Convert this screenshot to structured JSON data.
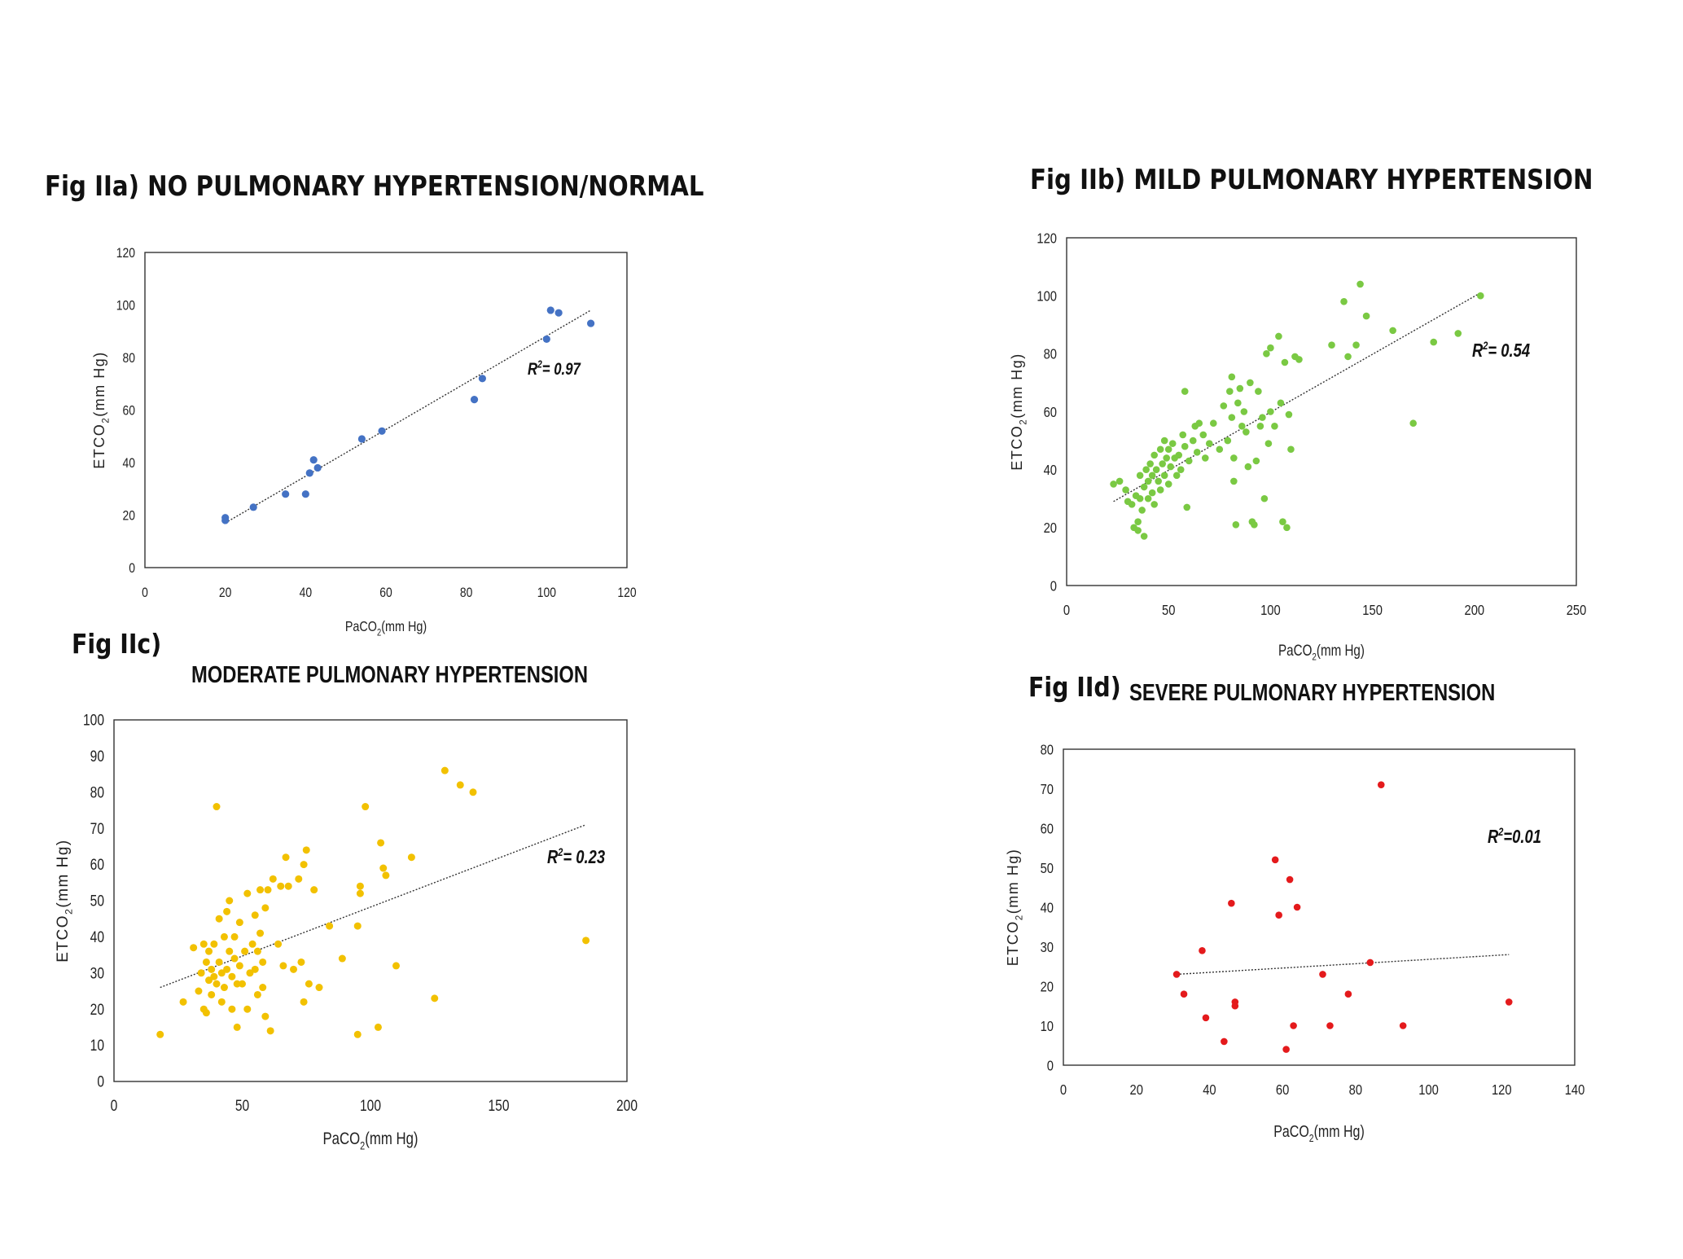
{
  "chart_data": [
    {
      "id": "a",
      "type": "scatter",
      "title": "Fig IIa) NO PULMONARY HYPERTENSION/NORMAL",
      "subtitle": "",
      "xlabel": "PaCO",
      "xlabel_sub": "2",
      "xlabel_suffix": "(mm Hg)",
      "ylabel": "ETCO",
      "ylabel_sub": "2",
      "ylabel_suffix": "(mm Hg)",
      "xlim": [
        0,
        120
      ],
      "ylim": [
        0,
        120
      ],
      "xticks": [
        "0",
        "20",
        "40",
        "60",
        "80",
        "100",
        "120"
      ],
      "yticks": [
        "0",
        "20",
        "40",
        "60",
        "80",
        "100",
        "120"
      ],
      "color": "#4472c4",
      "r2_label": "R",
      "r2_sup": "2",
      "r2_value": "= 0.97",
      "trendline": [
        [
          20,
          17
        ],
        [
          111,
          98
        ]
      ],
      "points": [
        [
          20,
          19
        ],
        [
          20,
          18
        ],
        [
          27,
          23
        ],
        [
          35,
          28
        ],
        [
          40,
          28
        ],
        [
          41,
          36
        ],
        [
          42,
          41
        ],
        [
          43,
          38
        ],
        [
          54,
          49
        ],
        [
          59,
          52
        ],
        [
          82,
          64
        ],
        [
          84,
          72
        ],
        [
          100,
          87
        ],
        [
          101,
          98
        ],
        [
          103,
          97
        ],
        [
          111,
          93
        ]
      ]
    },
    {
      "id": "b",
      "type": "scatter",
      "title": "Fig IIb) MILD PULMONARY HYPERTENSION",
      "subtitle": "",
      "xlabel": "PaCO",
      "xlabel_sub": "2",
      "xlabel_suffix": "(mm Hg)",
      "ylabel": "ETCO",
      "ylabel_sub": "2",
      "ylabel_suffix": "(mm Hg)",
      "xlim": [
        0,
        250
      ],
      "ylim": [
        0,
        120
      ],
      "xticks": [
        "0",
        "50",
        "100",
        "150",
        "200",
        "250"
      ],
      "yticks": [
        "0",
        "20",
        "40",
        "60",
        "80",
        "100",
        "120"
      ],
      "color": "#7ac943",
      "r2_label": "R",
      "r2_sup": "2",
      "r2_value": "= 0.54",
      "trendline": [
        [
          23,
          29
        ],
        [
          203,
          101
        ]
      ],
      "points": [
        [
          23,
          35
        ],
        [
          26,
          36
        ],
        [
          29,
          33
        ],
        [
          30,
          29
        ],
        [
          32,
          28
        ],
        [
          33,
          20
        ],
        [
          34,
          31
        ],
        [
          35,
          22
        ],
        [
          35,
          19
        ],
        [
          36,
          38
        ],
        [
          36,
          30
        ],
        [
          37,
          26
        ],
        [
          38,
          17
        ],
        [
          38,
          34
        ],
        [
          39,
          40
        ],
        [
          40,
          36
        ],
        [
          40,
          30
        ],
        [
          41,
          42
        ],
        [
          42,
          38
        ],
        [
          42,
          32
        ],
        [
          43,
          45
        ],
        [
          43,
          28
        ],
        [
          44,
          40
        ],
        [
          45,
          36
        ],
        [
          46,
          47
        ],
        [
          46,
          33
        ],
        [
          47,
          42
        ],
        [
          48,
          50
        ],
        [
          48,
          38
        ],
        [
          49,
          44
        ],
        [
          50,
          47
        ],
        [
          50,
          35
        ],
        [
          51,
          41
        ],
        [
          52,
          49
        ],
        [
          53,
          44
        ],
        [
          54,
          38
        ],
        [
          55,
          45
        ],
        [
          56,
          40
        ],
        [
          57,
          52
        ],
        [
          58,
          48
        ],
        [
          58,
          67
        ],
        [
          59,
          27
        ],
        [
          60,
          43
        ],
        [
          62,
          50
        ],
        [
          63,
          55
        ],
        [
          64,
          46
        ],
        [
          65,
          56
        ],
        [
          67,
          52
        ],
        [
          68,
          44
        ],
        [
          70,
          49
        ],
        [
          72,
          56
        ],
        [
          75,
          47
        ],
        [
          77,
          62
        ],
        [
          79,
          50
        ],
        [
          80,
          67
        ],
        [
          81,
          58
        ],
        [
          81,
          72
        ],
        [
          82,
          44
        ],
        [
          82,
          36
        ],
        [
          83,
          21
        ],
        [
          84,
          63
        ],
        [
          85,
          68
        ],
        [
          86,
          55
        ],
        [
          87,
          60
        ],
        [
          88,
          53
        ],
        [
          89,
          41
        ],
        [
          90,
          70
        ],
        [
          91,
          22
        ],
        [
          92,
          21
        ],
        [
          93,
          43
        ],
        [
          94,
          67
        ],
        [
          95,
          55
        ],
        [
          96,
          58
        ],
        [
          97,
          30
        ],
        [
          98,
          80
        ],
        [
          99,
          49
        ],
        [
          100,
          82
        ],
        [
          100,
          60
        ],
        [
          102,
          55
        ],
        [
          104,
          86
        ],
        [
          105,
          63
        ],
        [
          106,
          22
        ],
        [
          107,
          77
        ],
        [
          108,
          20
        ],
        [
          109,
          59
        ],
        [
          110,
          47
        ],
        [
          112,
          79
        ],
        [
          114,
          78
        ],
        [
          130,
          83
        ],
        [
          136,
          98
        ],
        [
          138,
          79
        ],
        [
          142,
          83
        ],
        [
          144,
          104
        ],
        [
          147,
          93
        ],
        [
          160,
          88
        ],
        [
          170,
          56
        ],
        [
          180,
          84
        ],
        [
          192,
          87
        ],
        [
          203,
          100
        ]
      ]
    },
    {
      "id": "c",
      "type": "scatter",
      "title": "Fig IIc)",
      "subtitle": "MODERATE PULMONARY HYPERTENSION",
      "xlabel": "PaCO",
      "xlabel_sub": "2",
      "xlabel_suffix": "(mm Hg)",
      "ylabel": "ETCO",
      "ylabel_sub": "2",
      "ylabel_suffix": "(mm Hg)",
      "xlim": [
        0,
        200
      ],
      "ylim": [
        0,
        100
      ],
      "xticks": [
        "0",
        "50",
        "100",
        "150",
        "200"
      ],
      "yticks": [
        "0",
        "10",
        "20",
        "30",
        "40",
        "50",
        "60",
        "70",
        "80",
        "90",
        "100"
      ],
      "color": "#f2c100",
      "r2_label": "R",
      "r2_sup": "2",
      "r2_value": "= 0.23",
      "trendline": [
        [
          18,
          26
        ],
        [
          184,
          71
        ]
      ],
      "points": [
        [
          18,
          13
        ],
        [
          27,
          22
        ],
        [
          31,
          37
        ],
        [
          33,
          25
        ],
        [
          34,
          30
        ],
        [
          35,
          38
        ],
        [
          35,
          20
        ],
        [
          36,
          33
        ],
        [
          36,
          19
        ],
        [
          37,
          28
        ],
        [
          37,
          36
        ],
        [
          38,
          24
        ],
        [
          38,
          31
        ],
        [
          39,
          29
        ],
        [
          39,
          38
        ],
        [
          40,
          27
        ],
        [
          40,
          76
        ],
        [
          41,
          33
        ],
        [
          41,
          45
        ],
        [
          42,
          22
        ],
        [
          42,
          30
        ],
        [
          43,
          40
        ],
        [
          43,
          26
        ],
        [
          44,
          47
        ],
        [
          44,
          31
        ],
        [
          45,
          36
        ],
        [
          45,
          50
        ],
        [
          46,
          20
        ],
        [
          46,
          29
        ],
        [
          47,
          34
        ],
        [
          47,
          40
        ],
        [
          48,
          27
        ],
        [
          48,
          15
        ],
        [
          49,
          32
        ],
        [
          49,
          44
        ],
        [
          50,
          27
        ],
        [
          51,
          36
        ],
        [
          52,
          20
        ],
        [
          52,
          52
        ],
        [
          53,
          30
        ],
        [
          54,
          38
        ],
        [
          55,
          31
        ],
        [
          55,
          46
        ],
        [
          56,
          24
        ],
        [
          56,
          36
        ],
        [
          57,
          41
        ],
        [
          57,
          53
        ],
        [
          58,
          26
        ],
        [
          58,
          33
        ],
        [
          59,
          48
        ],
        [
          59,
          18
        ],
        [
          60,
          53
        ],
        [
          61,
          14
        ],
        [
          62,
          56
        ],
        [
          64,
          38
        ],
        [
          65,
          54
        ],
        [
          66,
          32
        ],
        [
          67,
          62
        ],
        [
          68,
          54
        ],
        [
          70,
          31
        ],
        [
          72,
          56
        ],
        [
          73,
          33
        ],
        [
          74,
          22
        ],
        [
          74,
          60
        ],
        [
          75,
          64
        ],
        [
          76,
          27
        ],
        [
          78,
          53
        ],
        [
          80,
          26
        ],
        [
          84,
          43
        ],
        [
          89,
          34
        ],
        [
          95,
          13
        ],
        [
          95,
          43
        ],
        [
          96,
          52
        ],
        [
          96,
          54
        ],
        [
          98,
          76
        ],
        [
          103,
          15
        ],
        [
          104,
          66
        ],
        [
          105,
          59
        ],
        [
          106,
          57
        ],
        [
          110,
          32
        ],
        [
          116,
          62
        ],
        [
          125,
          23
        ],
        [
          129,
          86
        ],
        [
          135,
          82
        ],
        [
          140,
          80
        ],
        [
          184,
          39
        ]
      ]
    },
    {
      "id": "d",
      "type": "scatter",
      "title": "Fig IId)",
      "subtitle": "SEVERE PULMONARY HYPERTENSION",
      "xlabel": "PaCO",
      "xlabel_sub": "2",
      "xlabel_suffix": "(mm Hg)",
      "ylabel": "ETCO",
      "ylabel_sub": "2",
      "ylabel_suffix": "(mm Hg)",
      "xlim": [
        0,
        140
      ],
      "ylim": [
        0,
        80
      ],
      "xticks": [
        "0",
        "20",
        "40",
        "60",
        "80",
        "100",
        "120",
        "140"
      ],
      "yticks": [
        "0",
        "10",
        "20",
        "30",
        "40",
        "50",
        "60",
        "70",
        "80"
      ],
      "color": "#e41a1c",
      "r2_label": "R",
      "r2_sup": "2",
      "r2_value": "=0.01",
      "trendline": [
        [
          31,
          23
        ],
        [
          122,
          28
        ]
      ],
      "points": [
        [
          31,
          23
        ],
        [
          33,
          18
        ],
        [
          38,
          29
        ],
        [
          39,
          12
        ],
        [
          44,
          6
        ],
        [
          46,
          41
        ],
        [
          47,
          16
        ],
        [
          47,
          15
        ],
        [
          58,
          52
        ],
        [
          59,
          38
        ],
        [
          61,
          4
        ],
        [
          62,
          47
        ],
        [
          63,
          10
        ],
        [
          64,
          40
        ],
        [
          71,
          23
        ],
        [
          73,
          10
        ],
        [
          78,
          18
        ],
        [
          84,
          26
        ],
        [
          87,
          71
        ],
        [
          93,
          10
        ],
        [
          122,
          16
        ]
      ]
    }
  ]
}
